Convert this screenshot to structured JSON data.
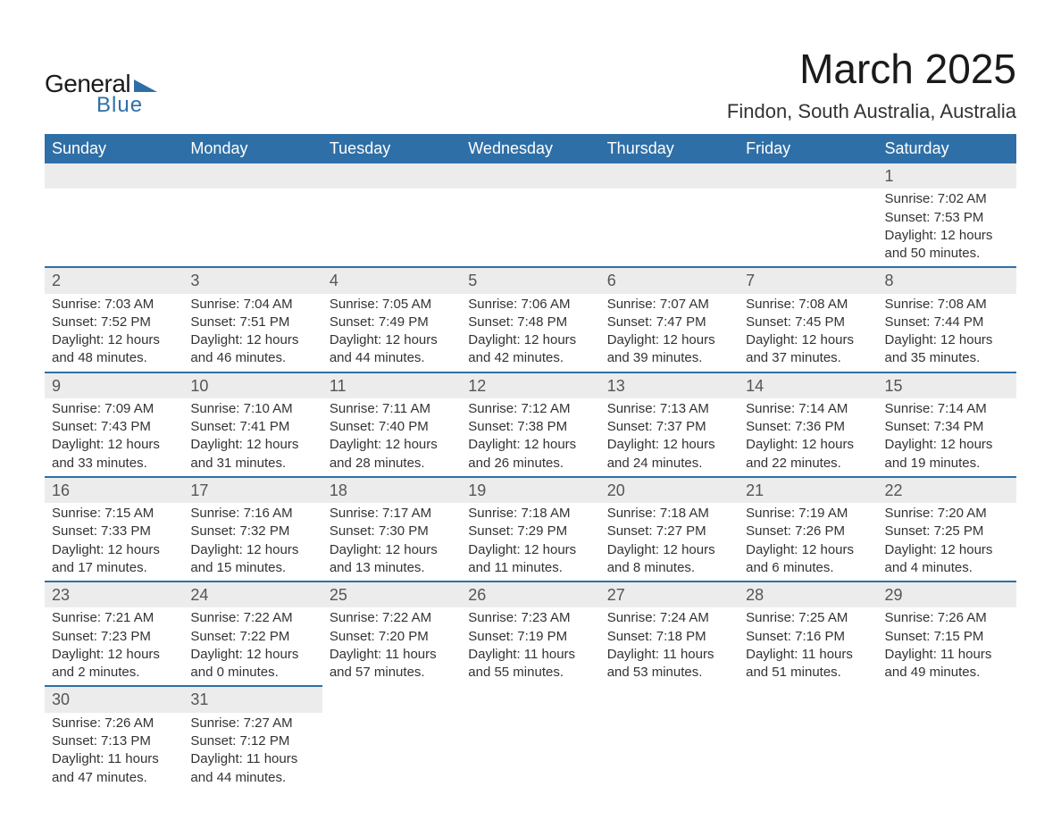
{
  "logo": {
    "text_general": "General",
    "text_blue": "Blue",
    "mark_color": "#2f6fa7"
  },
  "title": "March 2025",
  "location": "Findon, South Australia, Australia",
  "colors": {
    "header_bg": "#2f6fa7",
    "header_text": "#ffffff",
    "daynum_bg": "#ececec",
    "border": "#2f6fa7",
    "body_text": "#333333"
  },
  "day_headers": [
    "Sunday",
    "Monday",
    "Tuesday",
    "Wednesday",
    "Thursday",
    "Friday",
    "Saturday"
  ],
  "weeks": [
    [
      null,
      null,
      null,
      null,
      null,
      null,
      {
        "n": "1",
        "sr": "Sunrise: 7:02 AM",
        "ss": "Sunset: 7:53 PM",
        "dl": "Daylight: 12 hours and 50 minutes."
      }
    ],
    [
      {
        "n": "2",
        "sr": "Sunrise: 7:03 AM",
        "ss": "Sunset: 7:52 PM",
        "dl": "Daylight: 12 hours and 48 minutes."
      },
      {
        "n": "3",
        "sr": "Sunrise: 7:04 AM",
        "ss": "Sunset: 7:51 PM",
        "dl": "Daylight: 12 hours and 46 minutes."
      },
      {
        "n": "4",
        "sr": "Sunrise: 7:05 AM",
        "ss": "Sunset: 7:49 PM",
        "dl": "Daylight: 12 hours and 44 minutes."
      },
      {
        "n": "5",
        "sr": "Sunrise: 7:06 AM",
        "ss": "Sunset: 7:48 PM",
        "dl": "Daylight: 12 hours and 42 minutes."
      },
      {
        "n": "6",
        "sr": "Sunrise: 7:07 AM",
        "ss": "Sunset: 7:47 PM",
        "dl": "Daylight: 12 hours and 39 minutes."
      },
      {
        "n": "7",
        "sr": "Sunrise: 7:08 AM",
        "ss": "Sunset: 7:45 PM",
        "dl": "Daylight: 12 hours and 37 minutes."
      },
      {
        "n": "8",
        "sr": "Sunrise: 7:08 AM",
        "ss": "Sunset: 7:44 PM",
        "dl": "Daylight: 12 hours and 35 minutes."
      }
    ],
    [
      {
        "n": "9",
        "sr": "Sunrise: 7:09 AM",
        "ss": "Sunset: 7:43 PM",
        "dl": "Daylight: 12 hours and 33 minutes."
      },
      {
        "n": "10",
        "sr": "Sunrise: 7:10 AM",
        "ss": "Sunset: 7:41 PM",
        "dl": "Daylight: 12 hours and 31 minutes."
      },
      {
        "n": "11",
        "sr": "Sunrise: 7:11 AM",
        "ss": "Sunset: 7:40 PM",
        "dl": "Daylight: 12 hours and 28 minutes."
      },
      {
        "n": "12",
        "sr": "Sunrise: 7:12 AM",
        "ss": "Sunset: 7:38 PM",
        "dl": "Daylight: 12 hours and 26 minutes."
      },
      {
        "n": "13",
        "sr": "Sunrise: 7:13 AM",
        "ss": "Sunset: 7:37 PM",
        "dl": "Daylight: 12 hours and 24 minutes."
      },
      {
        "n": "14",
        "sr": "Sunrise: 7:14 AM",
        "ss": "Sunset: 7:36 PM",
        "dl": "Daylight: 12 hours and 22 minutes."
      },
      {
        "n": "15",
        "sr": "Sunrise: 7:14 AM",
        "ss": "Sunset: 7:34 PM",
        "dl": "Daylight: 12 hours and 19 minutes."
      }
    ],
    [
      {
        "n": "16",
        "sr": "Sunrise: 7:15 AM",
        "ss": "Sunset: 7:33 PM",
        "dl": "Daylight: 12 hours and 17 minutes."
      },
      {
        "n": "17",
        "sr": "Sunrise: 7:16 AM",
        "ss": "Sunset: 7:32 PM",
        "dl": "Daylight: 12 hours and 15 minutes."
      },
      {
        "n": "18",
        "sr": "Sunrise: 7:17 AM",
        "ss": "Sunset: 7:30 PM",
        "dl": "Daylight: 12 hours and 13 minutes."
      },
      {
        "n": "19",
        "sr": "Sunrise: 7:18 AM",
        "ss": "Sunset: 7:29 PM",
        "dl": "Daylight: 12 hours and 11 minutes."
      },
      {
        "n": "20",
        "sr": "Sunrise: 7:18 AM",
        "ss": "Sunset: 7:27 PM",
        "dl": "Daylight: 12 hours and 8 minutes."
      },
      {
        "n": "21",
        "sr": "Sunrise: 7:19 AM",
        "ss": "Sunset: 7:26 PM",
        "dl": "Daylight: 12 hours and 6 minutes."
      },
      {
        "n": "22",
        "sr": "Sunrise: 7:20 AM",
        "ss": "Sunset: 7:25 PM",
        "dl": "Daylight: 12 hours and 4 minutes."
      }
    ],
    [
      {
        "n": "23",
        "sr": "Sunrise: 7:21 AM",
        "ss": "Sunset: 7:23 PM",
        "dl": "Daylight: 12 hours and 2 minutes."
      },
      {
        "n": "24",
        "sr": "Sunrise: 7:22 AM",
        "ss": "Sunset: 7:22 PM",
        "dl": "Daylight: 12 hours and 0 minutes."
      },
      {
        "n": "25",
        "sr": "Sunrise: 7:22 AM",
        "ss": "Sunset: 7:20 PM",
        "dl": "Daylight: 11 hours and 57 minutes."
      },
      {
        "n": "26",
        "sr": "Sunrise: 7:23 AM",
        "ss": "Sunset: 7:19 PM",
        "dl": "Daylight: 11 hours and 55 minutes."
      },
      {
        "n": "27",
        "sr": "Sunrise: 7:24 AM",
        "ss": "Sunset: 7:18 PM",
        "dl": "Daylight: 11 hours and 53 minutes."
      },
      {
        "n": "28",
        "sr": "Sunrise: 7:25 AM",
        "ss": "Sunset: 7:16 PM",
        "dl": "Daylight: 11 hours and 51 minutes."
      },
      {
        "n": "29",
        "sr": "Sunrise: 7:26 AM",
        "ss": "Sunset: 7:15 PM",
        "dl": "Daylight: 11 hours and 49 minutes."
      }
    ],
    [
      {
        "n": "30",
        "sr": "Sunrise: 7:26 AM",
        "ss": "Sunset: 7:13 PM",
        "dl": "Daylight: 11 hours and 47 minutes."
      },
      {
        "n": "31",
        "sr": "Sunrise: 7:27 AM",
        "ss": "Sunset: 7:12 PM",
        "dl": "Daylight: 11 hours and 44 minutes."
      },
      null,
      null,
      null,
      null,
      null
    ]
  ]
}
